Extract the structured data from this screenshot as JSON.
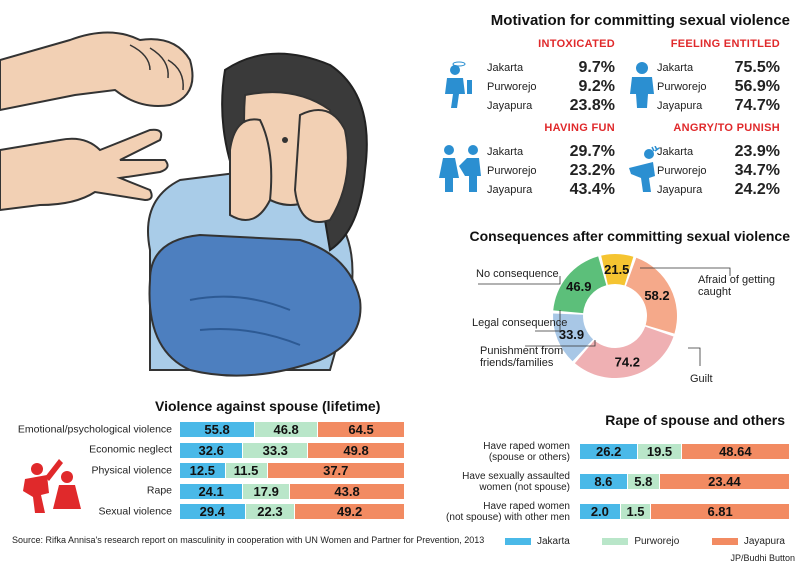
{
  "colors": {
    "jakarta": "#4ab9e8",
    "purworejo": "#b9e6c9",
    "jayapura": "#f28b62",
    "icon_blue": "#2b8fd1",
    "red": "#e0292b",
    "skin": "#f2d0b4",
    "jeans": "#4d7fbf"
  },
  "motivation": {
    "title": "Motivation for committing sexual violence",
    "blocks": [
      {
        "name": "INTOXICATED",
        "icon": "drunk-person-icon",
        "rows": [
          {
            "city": "Jakarta",
            "value": "9.7%"
          },
          {
            "city": "Purworejo",
            "value": "9.2%"
          },
          {
            "city": "Jayapura",
            "value": "23.8%"
          }
        ]
      },
      {
        "name": "FEELING ENTITLED",
        "icon": "entitled-person-icon",
        "rows": [
          {
            "city": "Jakarta",
            "value": "75.5%"
          },
          {
            "city": "Purworejo",
            "value": "56.9%"
          },
          {
            "city": "Jayapura",
            "value": "74.7%"
          }
        ]
      },
      {
        "name": "HAVING FUN",
        "icon": "having-fun-icon",
        "rows": [
          {
            "city": "Jakarta",
            "value": "29.7%"
          },
          {
            "city": "Purworejo",
            "value": "23.2%"
          },
          {
            "city": "Jayapura",
            "value": "43.4%"
          }
        ]
      },
      {
        "name": "ANGRY/TO PUNISH",
        "icon": "angry-person-icon",
        "rows": [
          {
            "city": "Jakarta",
            "value": "23.9%"
          },
          {
            "city": "Purworejo",
            "value": "34.7%"
          },
          {
            "city": "Jayapura",
            "value": "24.2%"
          }
        ]
      }
    ]
  },
  "consequences": {
    "title": "Consequences after committing sexual violence",
    "labels": {
      "no": "No consequence",
      "legal": "Legal consequence",
      "punish": "Punishment from\nfriends/families",
      "afraid": "Afraid of getting\ncaught",
      "guilt": "Guilt"
    }
  },
  "chart_data": [
    {
      "type": "pie",
      "title": "Consequences after committing sexual violence",
      "categories": [
        "No consequence",
        "Afraid of getting caught",
        "Guilt",
        "Punishment from friends/families",
        "Legal consequence"
      ],
      "values": [
        21.5,
        58.2,
        74.2,
        33.9,
        46.9
      ],
      "labels": [
        "21.5",
        "58.2",
        "74.2",
        "33.9",
        "46.9"
      ],
      "colors": [
        "#f5c431",
        "#f5a98a",
        "#efb0b3",
        "#a8c7e6",
        "#5cbf7a"
      ]
    },
    {
      "type": "bar",
      "title": "Violence against spouse (lifetime)",
      "stacked": true,
      "categories": [
        "Emotional/psychological violence",
        "Economic neglect",
        "Physical violence",
        "Rape",
        "Sexual violence"
      ],
      "series": [
        {
          "name": "Jakarta",
          "values": [
            55.8,
            32.6,
            12.5,
            24.1,
            29.4
          ],
          "labels": [
            "55.8",
            "32.6",
            "12.5",
            "24.1",
            "29.4"
          ]
        },
        {
          "name": "Purworejo",
          "values": [
            46.8,
            33.3,
            11.5,
            17.9,
            22.3
          ],
          "labels": [
            "46.8",
            "33.3",
            "11.5",
            "17.9",
            "22.3"
          ]
        },
        {
          "name": "Jayapura",
          "values": [
            64.5,
            49.8,
            37.7,
            43.8,
            49.2
          ],
          "labels": [
            "64.5",
            "49.8",
            "37.7",
            "43.8",
            "49.2"
          ]
        }
      ]
    },
    {
      "type": "bar",
      "title": "Rape of spouse and others",
      "stacked": true,
      "categories": [
        "Have raped women\n(spouse or others)",
        "Have sexually assaulted\nwomen (not spouse)",
        "Have raped women\n(not spouse) with other men"
      ],
      "series": [
        {
          "name": "Jakarta",
          "values": [
            26.2,
            8.6,
            2.0
          ],
          "labels": [
            "26.2",
            "8.6",
            "2.0"
          ]
        },
        {
          "name": "Purworejo",
          "values": [
            19.5,
            5.8,
            1.5
          ],
          "labels": [
            "19.5",
            "5.8",
            "1.5"
          ]
        },
        {
          "name": "Jayapura",
          "values": [
            48.64,
            23.44,
            6.81
          ],
          "labels": [
            "48.64",
            "23.44",
            "6.81"
          ]
        }
      ]
    }
  ],
  "legend": [
    "Jakarta",
    "Purworejo",
    "Jayapura"
  ],
  "source": "Source: Rifka Annisa's research report on masculinity in cooperation with UN Women and Partner for Prevention, 2013",
  "credit": "JP/Budhi Button"
}
